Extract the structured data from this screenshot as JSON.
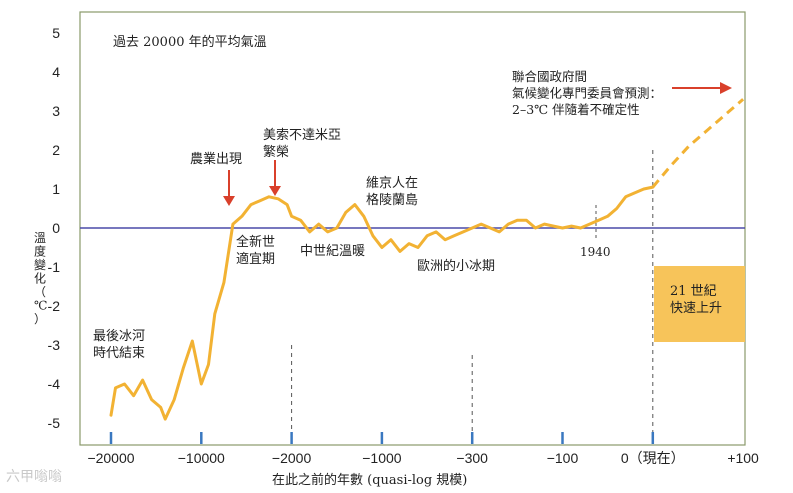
{
  "chart_data": {
    "type": "line",
    "title": "過去 20000 年的平均氣溫",
    "xlabel": "在此之前的年數 (quasi-log 規模)",
    "ylabel": "溫度變化（℃）",
    "ylim": [
      -5.5,
      5.5
    ],
    "yticks": [
      "-5",
      "-4",
      "-3",
      "-2",
      "-1",
      "0",
      "1",
      "2",
      "3",
      "4",
      "5"
    ],
    "xticks": [
      "−20000",
      "−10000",
      "−2000",
      "−1000",
      "−300",
      "−100",
      "0（現在）",
      "+100"
    ],
    "xtick_index": [
      0,
      1,
      2,
      3,
      4,
      5,
      6,
      7
    ],
    "grid": false,
    "zero_line": true,
    "colors": {
      "series": "#f2b233",
      "zero_line": "#4a4aa8",
      "frame": "#8a9a6a",
      "tick_mark": "#3a78c0",
      "arrow": "#d9402b",
      "box": "#f7c45a"
    },
    "series": [
      {
        "points_x": [
          0.0,
          0.05,
          0.15,
          0.25,
          0.35,
          0.45,
          0.55,
          0.6,
          0.7,
          0.8,
          0.9,
          1.0,
          1.08,
          1.15,
          1.25,
          1.35,
          1.45,
          1.55,
          1.65,
          1.75,
          1.85,
          1.95,
          2.0,
          2.1,
          2.2,
          2.3,
          2.4,
          2.5,
          2.6,
          2.7,
          2.8,
          2.9,
          3.0,
          3.1,
          3.2,
          3.3,
          3.4,
          3.5,
          3.6,
          3.7,
          3.8,
          3.9,
          4.0,
          4.1,
          4.2,
          4.3,
          4.4,
          4.5,
          4.6,
          4.7,
          4.8,
          4.9,
          5.0,
          5.1,
          5.2,
          5.3,
          5.4,
          5.5,
          5.6,
          5.7,
          5.8,
          5.9,
          6.0
        ],
        "points_y": [
          -4.8,
          -4.1,
          -4.0,
          -4.3,
          -3.9,
          -4.4,
          -4.6,
          -4.9,
          -4.4,
          -3.6,
          -2.9,
          -4.0,
          -3.5,
          -2.2,
          -1.4,
          0.1,
          0.3,
          0.6,
          0.7,
          0.8,
          0.75,
          0.6,
          0.3,
          0.2,
          -0.1,
          0.1,
          -0.1,
          0.0,
          0.4,
          0.6,
          0.3,
          -0.2,
          -0.5,
          -0.3,
          -0.6,
          -0.4,
          -0.5,
          -0.2,
          -0.1,
          -0.3,
          -0.2,
          -0.1,
          0.0,
          0.1,
          0.0,
          -0.1,
          0.1,
          0.2,
          0.2,
          0.0,
          0.1,
          0.05,
          0.0,
          0.05,
          0.0,
          0.1,
          0.2,
          0.3,
          0.5,
          0.8,
          0.9,
          1.0,
          1.05
        ]
      },
      {
        "style": "dashed",
        "points_x": [
          6.0,
          6.2,
          6.4,
          6.6,
          6.8,
          7.0
        ],
        "points_y": [
          1.05,
          1.6,
          2.1,
          2.5,
          2.9,
          3.3
        ]
      }
    ],
    "annotations": [
      {
        "id": "lgm",
        "lines": [
          "最後冰河",
          "時代結束"
        ]
      },
      {
        "id": "farming",
        "lines": [
          "農業出現"
        ]
      },
      {
        "id": "mesopotamia",
        "lines": [
          "美索不達米亞",
          "繁榮"
        ]
      },
      {
        "id": "holocene",
        "lines": [
          "全新世",
          "適宜期"
        ]
      },
      {
        "id": "medieval",
        "lines": [
          "中世紀溫暖"
        ]
      },
      {
        "id": "viking",
        "lines": [
          "維京人在",
          "格陵蘭島"
        ]
      },
      {
        "id": "lia",
        "lines": [
          "歐洲的小冰期"
        ]
      },
      {
        "id": "y1940",
        "lines": [
          "1940"
        ]
      },
      {
        "id": "ipcc",
        "lines": [
          "聯合國政府間",
          "氣候變化專門委員會預測：",
          "2–3℃ 伴隨着不確定性"
        ]
      },
      {
        "id": "c21",
        "lines": [
          "21 世紀",
          "快速上升"
        ]
      }
    ]
  },
  "watermark": "六甲嗡嗡"
}
